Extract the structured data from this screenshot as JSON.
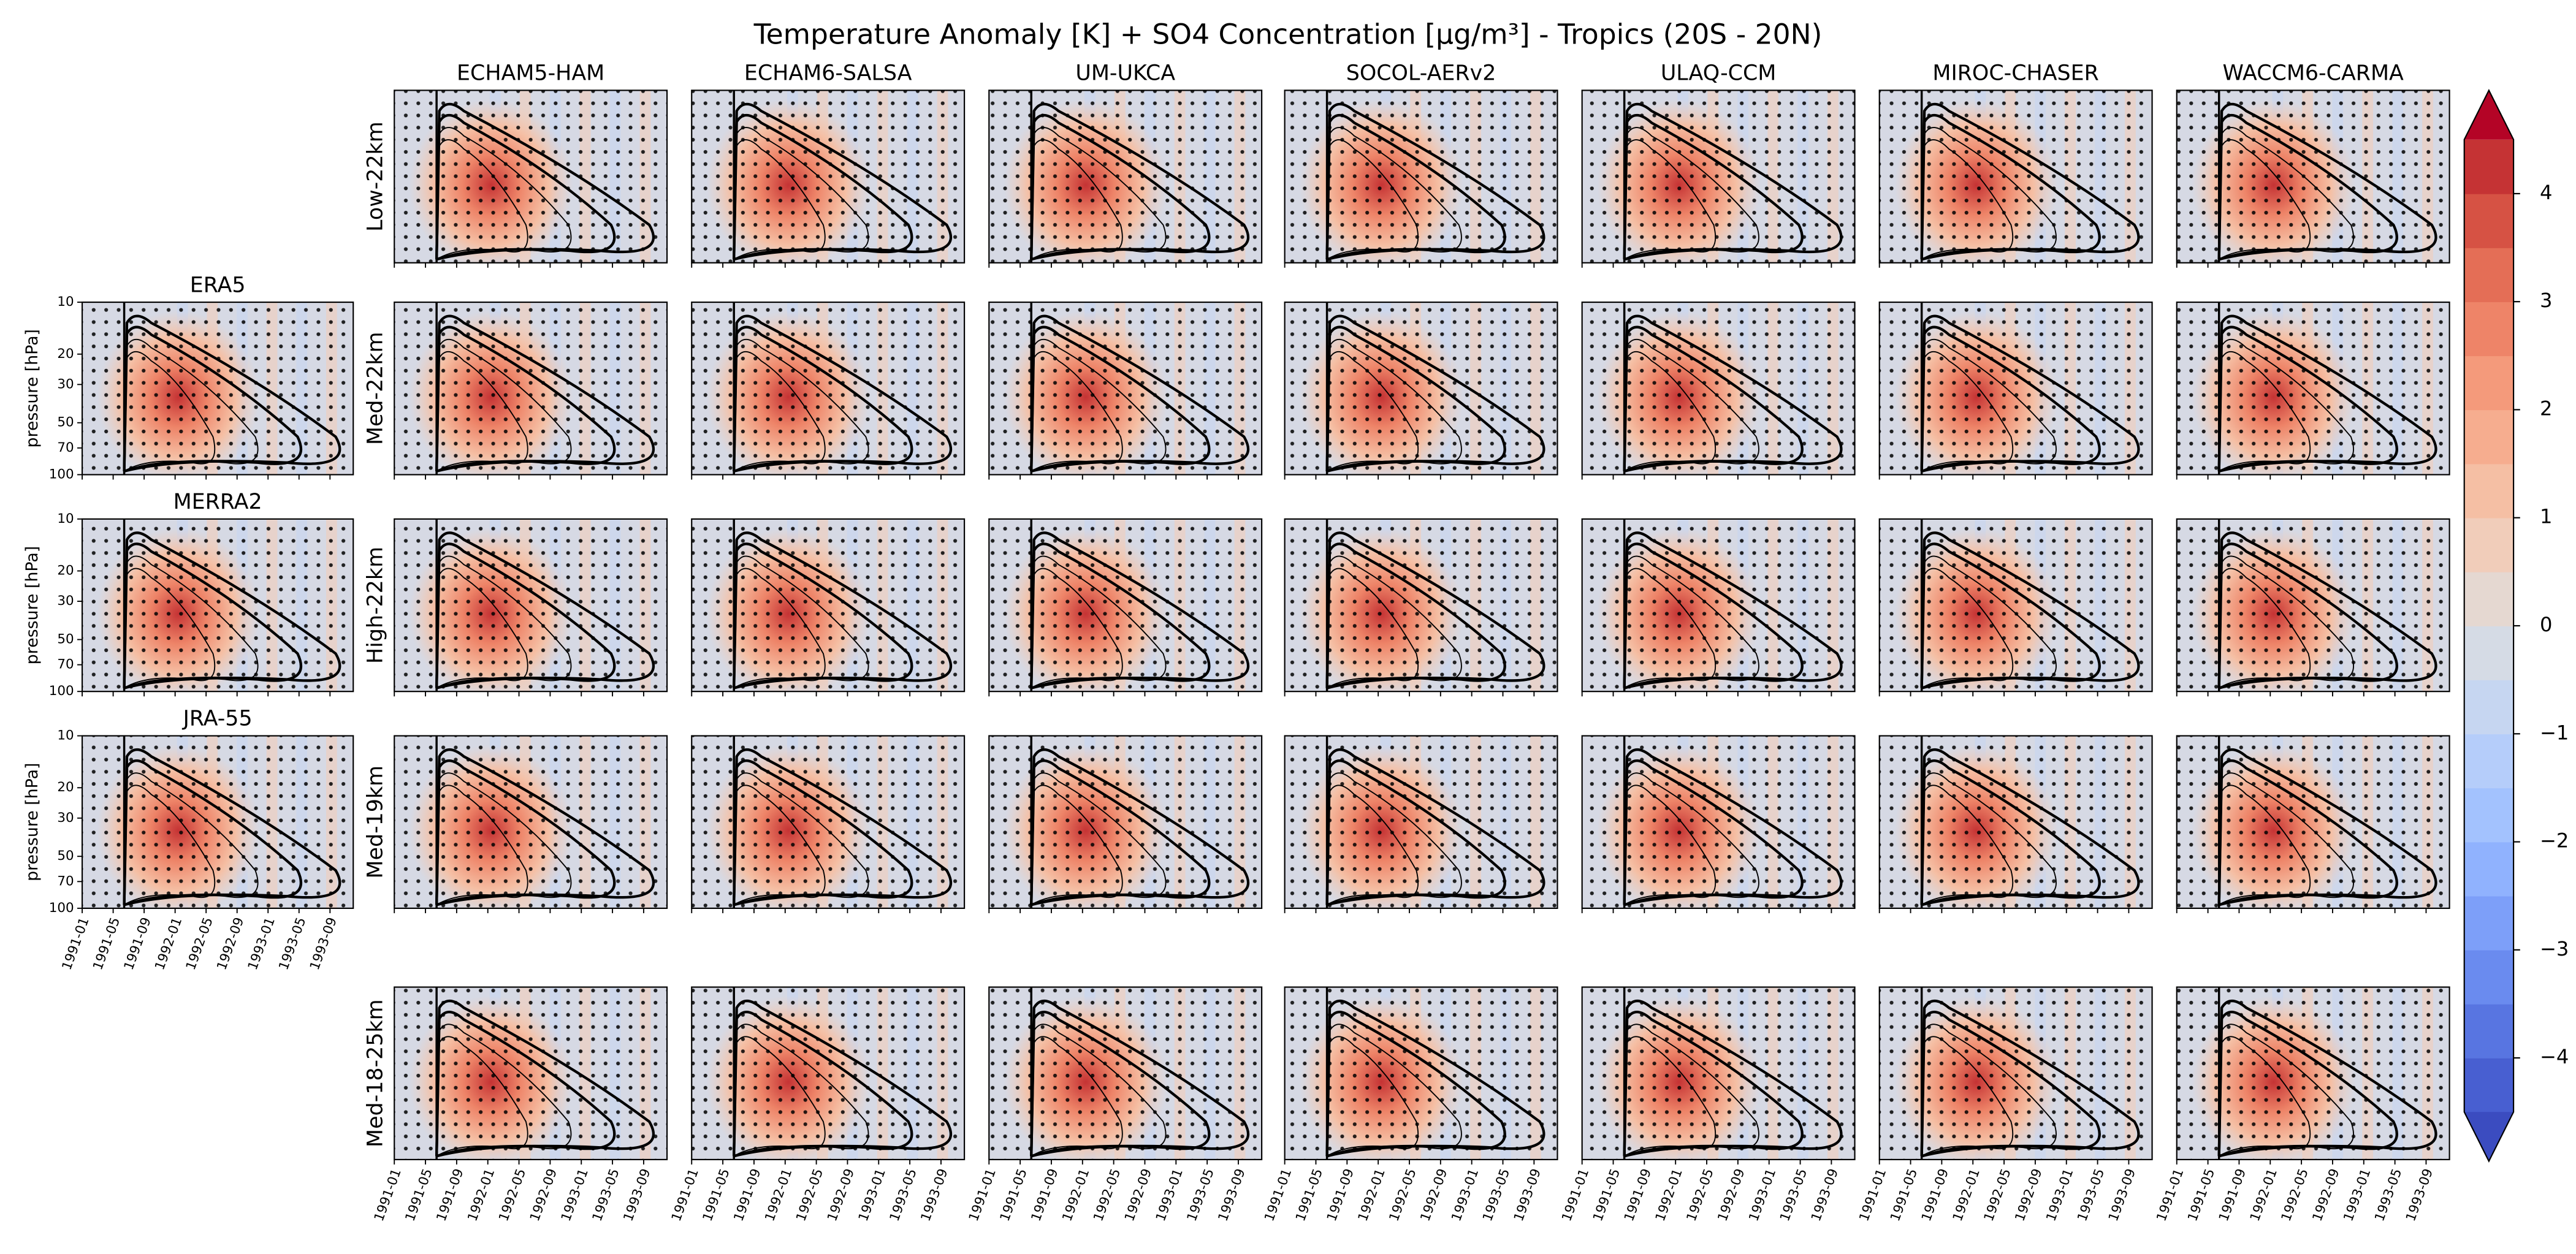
{
  "chart_data": {
    "type": "contour",
    "title": "Temperature Anomaly [K] + SO4 Concentration [μg/m³] - Tropics (20S - 20N)",
    "columns": [
      "ECHAM5-HAM",
      "ECHAM6-SALSA",
      "UM-UKCA",
      "SOCOL-AERv2",
      "ULAQ-CCM",
      "MIROC-CHASER",
      "WACCM6-CARMA"
    ],
    "rows": [
      "Low-22km",
      "Med-22km",
      "High-22km",
      "Med-19km",
      "Med-18-25km"
    ],
    "reanalyses": [
      "ERA5",
      "MERRA2",
      "JRA-55"
    ],
    "ylabel": "pressure [hPa]",
    "log_y": true,
    "ylim": [
      100,
      10
    ],
    "yticks": [
      10,
      20,
      30,
      50,
      70,
      100
    ],
    "xlim": [
      "1991-01",
      "1993-12"
    ],
    "xticks": [
      "1991-01",
      "1991-05",
      "1991-09",
      "1992-01",
      "1992-05",
      "1992-09",
      "1993-01",
      "1993-05",
      "1993-09"
    ],
    "colorbar": {
      "ylim": [
        -4.5,
        4.5
      ],
      "levels": [
        -4.5,
        -4,
        -3.5,
        -3,
        -2.5,
        -2,
        -1.5,
        -1,
        -0.5,
        0,
        0.5,
        1,
        1.5,
        2,
        2.5,
        3,
        3.5,
        4,
        4.5
      ],
      "colors": [
        "#485fd1",
        "#5875e1",
        "#6a8bef",
        "#7d9ff9",
        "#90b2fe",
        "#a3c2fe",
        "#b5cdfa",
        "#c6d6f1",
        "#d5dbe5",
        "#e5d8d1",
        "#f1cdba",
        "#f5bfa4",
        "#f6ad8f",
        "#f49a7b",
        "#ee8468",
        "#e46e56",
        "#d65244",
        "#c53334"
      ],
      "extend_colors": [
        "#3b4cc0",
        "#b40426"
      ],
      "ticks": [
        {
          "value": -4,
          "label": "−4"
        },
        {
          "value": -3,
          "label": "−3"
        },
        {
          "value": -2,
          "label": "−2"
        },
        {
          "value": -1,
          "label": "−1"
        },
        0,
        1,
        2,
        3,
        4
      ]
    }
  }
}
